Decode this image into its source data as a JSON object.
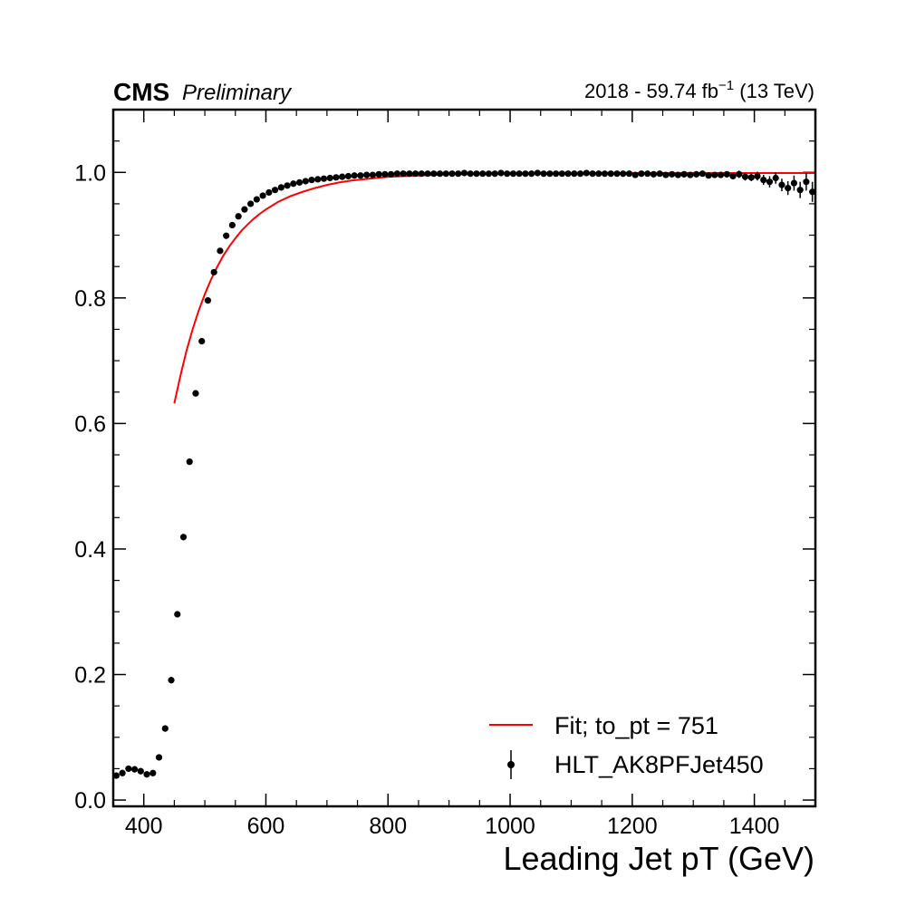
{
  "header": {
    "experiment": "CMS",
    "status": "Preliminary",
    "lumi_prefix": "2018 - 59.74 fb",
    "lumi_exponent": "−1",
    "lumi_suffix": " (13 TeV)"
  },
  "chart_data": {
    "type": "scatter",
    "title": "",
    "xlabel": "Leading Jet pT (GeV)",
    "ylabel": "",
    "xlim": [
      350,
      1500
    ],
    "ylim": [
      -0.01,
      1.1
    ],
    "x_ticks": [
      400,
      600,
      800,
      1000,
      1200,
      1400
    ],
    "x_tick_labels": [
      "400",
      "600",
      "800",
      "1000",
      "1200",
      "1400"
    ],
    "y_ticks": [
      0.0,
      0.2,
      0.4,
      0.6,
      0.8,
      1.0
    ],
    "y_tick_labels": [
      "0.0",
      "0.2",
      "0.4",
      "0.6",
      "0.8",
      "1.0"
    ],
    "grid": false,
    "legend_position": "bottom-right",
    "colors": {
      "fit": "#ff0000",
      "data": "#000000"
    },
    "series": [
      {
        "name": "Fit; to_pt = 751",
        "kind": "line",
        "x": [
          450,
          460,
          470,
          480,
          490,
          500,
          510,
          520,
          530,
          540,
          550,
          560,
          570,
          580,
          590,
          600,
          620,
          640,
          660,
          680,
          700,
          720,
          740,
          760,
          780,
          800,
          850,
          900,
          1000,
          1100,
          1200,
          1300,
          1400,
          1500
        ],
        "y": [
          0.632,
          0.676,
          0.716,
          0.75,
          0.78,
          0.806,
          0.829,
          0.849,
          0.867,
          0.882,
          0.895,
          0.907,
          0.917,
          0.926,
          0.934,
          0.941,
          0.953,
          0.962,
          0.969,
          0.975,
          0.98,
          0.984,
          0.987,
          0.989,
          0.991,
          0.993,
          0.995,
          0.997,
          0.998,
          0.999,
          0.999,
          0.999,
          0.999,
          0.999
        ]
      },
      {
        "name": "HLT_AK8PFJet450",
        "kind": "points",
        "x": [
          355,
          365,
          375,
          385,
          395,
          405,
          415,
          425,
          435,
          445,
          455,
          465,
          475,
          485,
          495,
          505,
          515,
          525,
          535,
          545,
          555,
          565,
          575,
          585,
          595,
          605,
          615,
          625,
          635,
          645,
          655,
          665,
          675,
          685,
          695,
          705,
          715,
          725,
          735,
          745,
          755,
          765,
          775,
          785,
          795,
          805,
          815,
          825,
          835,
          845,
          855,
          865,
          875,
          885,
          895,
          905,
          915,
          925,
          935,
          945,
          955,
          965,
          975,
          985,
          995,
          1005,
          1015,
          1025,
          1035,
          1045,
          1055,
          1065,
          1075,
          1085,
          1095,
          1105,
          1115,
          1125,
          1135,
          1145,
          1155,
          1165,
          1175,
          1185,
          1195,
          1205,
          1215,
          1225,
          1235,
          1245,
          1255,
          1265,
          1275,
          1285,
          1295,
          1305,
          1315,
          1325,
          1335,
          1345,
          1355,
          1365,
          1375,
          1385,
          1395,
          1405,
          1415,
          1425,
          1435,
          1445,
          1455,
          1465,
          1475,
          1485,
          1495
        ],
        "y": [
          0.039,
          0.043,
          0.05,
          0.049,
          0.046,
          0.041,
          0.043,
          0.068,
          0.114,
          0.191,
          0.296,
          0.419,
          0.539,
          0.648,
          0.731,
          0.796,
          0.841,
          0.875,
          0.899,
          0.916,
          0.93,
          0.941,
          0.95,
          0.957,
          0.963,
          0.968,
          0.972,
          0.976,
          0.979,
          0.982,
          0.984,
          0.986,
          0.988,
          0.989,
          0.99,
          0.991,
          0.992,
          0.993,
          0.994,
          0.995,
          0.995,
          0.996,
          0.996,
          0.997,
          0.997,
          0.997,
          0.998,
          0.998,
          0.998,
          0.998,
          0.998,
          0.998,
          0.998,
          0.998,
          0.998,
          0.998,
          0.998,
          0.999,
          0.998,
          0.998,
          0.998,
          0.998,
          0.998,
          0.999,
          0.998,
          0.998,
          0.998,
          0.998,
          0.998,
          0.999,
          0.998,
          0.998,
          0.998,
          0.998,
          0.998,
          0.998,
          0.998,
          0.999,
          0.998,
          0.998,
          0.998,
          0.998,
          0.998,
          0.998,
          0.998,
          0.996,
          0.998,
          0.998,
          0.997,
          0.998,
          0.996,
          0.997,
          0.996,
          0.997,
          0.996,
          0.997,
          0.998,
          0.995,
          0.996,
          0.996,
          0.997,
          0.994,
          0.997,
          0.993,
          0.992,
          0.994,
          0.988,
          0.985,
          0.991,
          0.98,
          0.975,
          0.983,
          0.972,
          0.985,
          0.969
        ],
        "yerr": [
          0.005,
          0.005,
          0.005,
          0.005,
          0.005,
          0.005,
          0.005,
          0.005,
          0.005,
          0.005,
          0.005,
          0.005,
          0.005,
          0.005,
          0.005,
          0.004,
          0.004,
          0.004,
          0.003,
          0.003,
          0.003,
          0.003,
          0.003,
          0.002,
          0.002,
          0.002,
          0.002,
          0.002,
          0.002,
          0.002,
          0.002,
          0.002,
          0.002,
          0.002,
          0.002,
          0.002,
          0.002,
          0.002,
          0.002,
          0.002,
          0.002,
          0.002,
          0.002,
          0.002,
          0.002,
          0.002,
          0.002,
          0.002,
          0.002,
          0.002,
          0.002,
          0.002,
          0.002,
          0.002,
          0.002,
          0.002,
          0.002,
          0.002,
          0.002,
          0.002,
          0.002,
          0.002,
          0.002,
          0.002,
          0.002,
          0.002,
          0.002,
          0.002,
          0.002,
          0.002,
          0.002,
          0.002,
          0.002,
          0.002,
          0.002,
          0.002,
          0.002,
          0.002,
          0.002,
          0.002,
          0.002,
          0.002,
          0.002,
          0.002,
          0.002,
          0.003,
          0.003,
          0.003,
          0.003,
          0.003,
          0.003,
          0.003,
          0.003,
          0.004,
          0.004,
          0.004,
          0.004,
          0.004,
          0.004,
          0.005,
          0.005,
          0.005,
          0.006,
          0.006,
          0.006,
          0.007,
          0.008,
          0.009,
          0.009,
          0.01,
          0.011,
          0.012,
          0.013,
          0.014,
          0.016
        ]
      }
    ]
  }
}
